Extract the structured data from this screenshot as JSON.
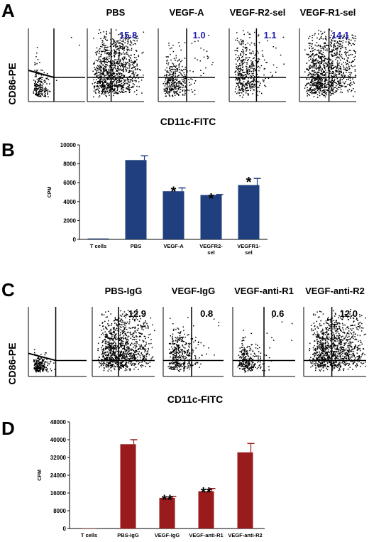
{
  "panels": {
    "A": {
      "letter": "A",
      "ylabel": "CD86-PE",
      "xlabel": "CD11c-FITC",
      "plots": [
        {
          "title": "",
          "value": ""
        },
        {
          "title": "PBS",
          "value": "15.8"
        },
        {
          "title": "VEGF-A",
          "value": "1.0"
        },
        {
          "title": "VEGF-R2-sel",
          "value": "1.1"
        },
        {
          "title": "VEGF-R1-sel",
          "value": "14.1"
        }
      ]
    },
    "C": {
      "letter": "C",
      "ylabel": "CD86-PE",
      "xlabel": "CD11c-FITC",
      "plots": [
        {
          "title": "",
          "value": ""
        },
        {
          "title": "PBS-IgG",
          "value": "12.9"
        },
        {
          "title": "VEGF-IgG",
          "value": "0.8"
        },
        {
          "title": "VEGF-anti-R1",
          "value": "0.6"
        },
        {
          "title": "VEGF-anti-R2",
          "value": "12.0"
        }
      ]
    }
  },
  "chart_data": [
    {
      "panel": "B",
      "letter": "B",
      "type": "bar",
      "ylabel": "CPM",
      "ylim": [
        0,
        10000
      ],
      "yticks": [
        "0",
        "2000",
        "4000",
        "6000",
        "8000",
        "10000"
      ],
      "categories": [
        [
          "T cells"
        ],
        [
          "PBS"
        ],
        [
          "VEGF-A"
        ],
        [
          "VEGFR2-",
          "sel"
        ],
        [
          "VEGFR1-",
          "sel"
        ]
      ],
      "values": [
        100,
        8400,
        5100,
        4700,
        5750
      ],
      "errors": [
        0,
        450,
        350,
        50,
        700
      ],
      "annotations": [
        "",
        "",
        "*",
        "*",
        "*"
      ],
      "color": "#1f3f7e"
    },
    {
      "panel": "D",
      "letter": "D",
      "type": "bar",
      "ylabel": "CPM",
      "ylim": [
        0,
        48000
      ],
      "yticks": [
        "0",
        "8000",
        "16000",
        "24000",
        "32000",
        "40000",
        "48000"
      ],
      "categories": [
        [
          "T cells"
        ],
        [
          "PBS-IgG"
        ],
        [
          "VEGF-IgG"
        ],
        [
          "VEGF-anti-R1"
        ],
        [
          "VEGF-anti-R2"
        ]
      ],
      "values": [
        150,
        38000,
        13800,
        16800,
        34300
      ],
      "errors": [
        0,
        2000,
        700,
        1200,
        4000
      ],
      "annotations": [
        "",
        "",
        "**",
        "**",
        ""
      ],
      "color": "#9a1b1b"
    }
  ]
}
